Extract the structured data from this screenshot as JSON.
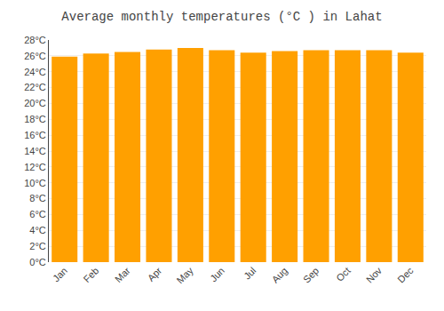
{
  "chart_data": {
    "type": "bar",
    "title": "Average monthly temperatures (°C ) in Lahat",
    "categories": [
      "Jan",
      "Feb",
      "Mar",
      "Apr",
      "May",
      "Jun",
      "Jul",
      "Aug",
      "Sep",
      "Oct",
      "Nov",
      "Dec"
    ],
    "values": [
      25.9,
      26.3,
      26.5,
      26.8,
      27.0,
      26.7,
      26.4,
      26.6,
      26.7,
      26.7,
      26.7,
      26.4
    ],
    "color": "#FFA000",
    "ylim": [
      0,
      28
    ],
    "yticks": [
      {
        "value": 0,
        "label": "0°C"
      },
      {
        "value": 2,
        "label": "2°C"
      },
      {
        "value": 4,
        "label": "4°C"
      },
      {
        "value": 6,
        "label": "6°C"
      },
      {
        "value": 8,
        "label": "8°C"
      },
      {
        "value": 10,
        "label": "10°C"
      },
      {
        "value": 12,
        "label": "12°C"
      },
      {
        "value": 14,
        "label": "14°C"
      },
      {
        "value": 16,
        "label": "16°C"
      },
      {
        "value": 18,
        "label": "18°C"
      },
      {
        "value": 20,
        "label": "20°C"
      },
      {
        "value": 22,
        "label": "22°C"
      },
      {
        "value": 24,
        "label": "24°C"
      },
      {
        "value": 26,
        "label": "26°C"
      },
      {
        "value": 28,
        "label": "28°C"
      }
    ],
    "grid": true
  }
}
